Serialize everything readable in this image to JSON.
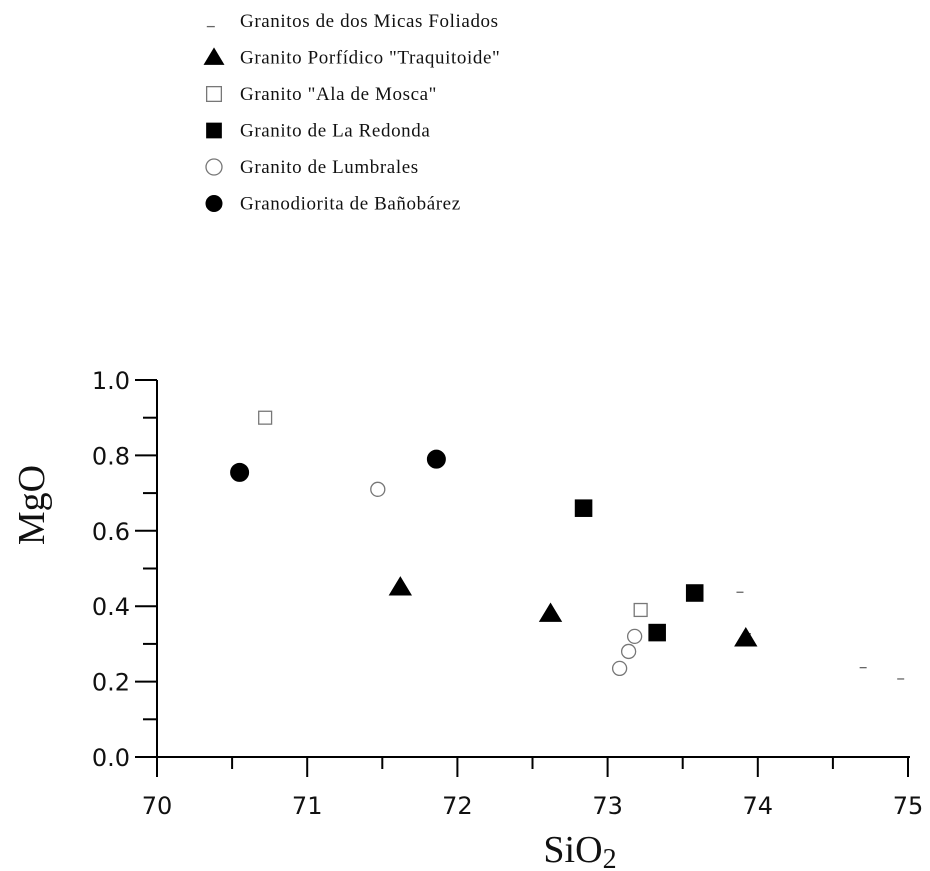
{
  "chart_data": {
    "type": "scatter",
    "title": "",
    "xlabel": "SiO",
    "xlabel_subscript": "2",
    "ylabel": "MgO",
    "xlim": [
      70,
      75
    ],
    "ylim": [
      0,
      1.0
    ],
    "x_ticks": [
      "70",
      "71",
      "72",
      "73",
      "74",
      "75"
    ],
    "y_ticks": [
      "0.0",
      "0.2",
      "0.4",
      "0.6",
      "0.8",
      "1.0"
    ],
    "grid": false,
    "legend_position": "top",
    "series": [
      {
        "name": "Granitos de dos Micas Foliados",
        "marker": "dash",
        "filled": false,
        "points": [
          [
            73.9,
            0.45
          ],
          [
            73.95,
            0.34
          ],
          [
            74.72,
            0.25
          ],
          [
            74.97,
            0.22
          ]
        ]
      },
      {
        "name": "Granito Porfídico \"Traquitoide\"",
        "marker": "triangle",
        "filled": true,
        "points": [
          [
            71.62,
            0.45
          ],
          [
            72.62,
            0.38
          ],
          [
            73.92,
            0.315
          ]
        ]
      },
      {
        "name": "Granito \"Ala de Mosca\"",
        "marker": "square",
        "filled": false,
        "points": [
          [
            70.72,
            0.9
          ],
          [
            73.22,
            0.39
          ]
        ]
      },
      {
        "name": "Granito de La Redonda",
        "marker": "square",
        "filled": true,
        "points": [
          [
            72.84,
            0.66
          ],
          [
            73.33,
            0.33
          ],
          [
            73.58,
            0.435
          ]
        ]
      },
      {
        "name": "Granito de Lumbrales",
        "marker": "circle",
        "filled": false,
        "points": [
          [
            71.47,
            0.71
          ],
          [
            73.08,
            0.235
          ],
          [
            73.14,
            0.28
          ],
          [
            73.18,
            0.32
          ]
        ]
      },
      {
        "name": "Granodiorita de Bañobárez",
        "marker": "circle",
        "filled": true,
        "points": [
          [
            70.55,
            0.755
          ],
          [
            71.86,
            0.79
          ]
        ]
      }
    ]
  }
}
